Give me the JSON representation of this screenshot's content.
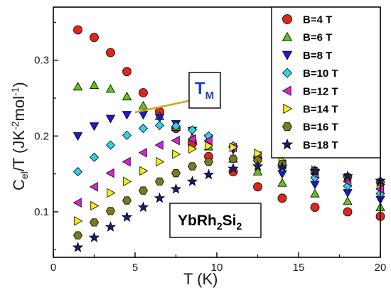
{
  "chart_data": {
    "type": "scatter",
    "xlabel": "T (K)",
    "ylabel_main": "C",
    "ylabel_sub": "el",
    "ylabel_mid": "/T (JK",
    "ylabel_sup1": "-2",
    "ylabel_mol": "mol",
    "ylabel_sup2": "-1",
    "ylabel_end": ")",
    "xlim": [
      0,
      20
    ],
    "ylim": [
      0.04,
      0.37
    ],
    "x_ticks": [
      0,
      5,
      10,
      15,
      20
    ],
    "y_ticks": [
      0.1,
      0.2,
      0.3
    ],
    "x_tick_labels": [
      "0",
      "5",
      "10",
      "15",
      "20"
    ],
    "y_tick_labels": [
      "0.1",
      "0.2",
      "0.3"
    ],
    "legend_position": "top-right",
    "annotation_TM": {
      "main": "T",
      "sub": "M",
      "color": "#1f3fbf",
      "arrow_color": "#d9a21a"
    },
    "annotation_compound": {
      "p1": "YbRh",
      "s1": "2",
      "p2": "Si",
      "s2": "2"
    },
    "series": [
      {
        "name": "B=4 T",
        "marker": "circle",
        "color": "#e0251b",
        "points": [
          [
            1.5,
            0.34
          ],
          [
            2.5,
            0.33
          ],
          [
            3.5,
            0.31
          ],
          [
            4.5,
            0.285
          ],
          [
            5.5,
            0.257
          ],
          [
            6.5,
            0.232
          ],
          [
            7.5,
            0.21
          ],
          [
            8.5,
            0.19
          ],
          [
            9.5,
            0.173
          ],
          [
            11,
            0.153
          ],
          [
            12.5,
            0.133
          ],
          [
            14,
            0.118
          ],
          [
            16,
            0.106
          ],
          [
            18,
            0.1
          ],
          [
            20,
            0.094
          ]
        ]
      },
      {
        "name": "B=6 T",
        "marker": "triangle-up",
        "color": "#5fc418",
        "points": [
          [
            1.5,
            0.265
          ],
          [
            2.5,
            0.267
          ],
          [
            3.5,
            0.262
          ],
          [
            4.5,
            0.252
          ],
          [
            5.5,
            0.24
          ],
          [
            6.5,
            0.226
          ],
          [
            7.5,
            0.212
          ],
          [
            8.5,
            0.198
          ],
          [
            9.5,
            0.186
          ],
          [
            11,
            0.17
          ],
          [
            12.5,
            0.153
          ],
          [
            14,
            0.138
          ],
          [
            16,
            0.124
          ],
          [
            18,
            0.114
          ],
          [
            20,
            0.106
          ]
        ]
      },
      {
        "name": "B=8 T",
        "marker": "triangle-down",
        "color": "#1a1adc",
        "points": [
          [
            1.5,
            0.2
          ],
          [
            2.5,
            0.213
          ],
          [
            3.5,
            0.223
          ],
          [
            4.5,
            0.228
          ],
          [
            5.5,
            0.228
          ],
          [
            6.5,
            0.224
          ],
          [
            7.5,
            0.216
          ],
          [
            8.5,
            0.207
          ],
          [
            9.5,
            0.197
          ],
          [
            11,
            0.182
          ],
          [
            12.5,
            0.166
          ],
          [
            14,
            0.15
          ],
          [
            16,
            0.136
          ],
          [
            18,
            0.125
          ],
          [
            20,
            0.116
          ]
        ]
      },
      {
        "name": "B=10 T",
        "marker": "diamond",
        "color": "#31cfe8",
        "points": [
          [
            1.5,
            0.153
          ],
          [
            2.5,
            0.172
          ],
          [
            3.5,
            0.188
          ],
          [
            4.5,
            0.201
          ],
          [
            5.5,
            0.21
          ],
          [
            6.5,
            0.214
          ],
          [
            7.5,
            0.213
          ],
          [
            8.5,
            0.208
          ],
          [
            9.5,
            0.2
          ],
          [
            11,
            0.187
          ],
          [
            12.5,
            0.172
          ],
          [
            14,
            0.158
          ],
          [
            16,
            0.145
          ],
          [
            18,
            0.134
          ],
          [
            20,
            0.124
          ]
        ]
      },
      {
        "name": "B=12 T",
        "marker": "triangle-left",
        "color": "#d424d4",
        "points": [
          [
            1.5,
            0.112
          ],
          [
            2.5,
            0.133
          ],
          [
            3.5,
            0.151
          ],
          [
            4.5,
            0.166
          ],
          [
            5.5,
            0.178
          ],
          [
            6.5,
            0.188
          ],
          [
            7.5,
            0.194
          ],
          [
            8.5,
            0.196
          ],
          [
            9.5,
            0.194
          ],
          [
            11,
            0.185
          ],
          [
            12.5,
            0.174
          ],
          [
            14,
            0.163
          ],
          [
            16,
            0.15
          ],
          [
            18,
            0.14
          ],
          [
            20,
            0.13
          ]
        ]
      },
      {
        "name": "B=14 T",
        "marker": "triangle-right",
        "color": "#f2ee16",
        "points": [
          [
            1.5,
            0.088
          ],
          [
            2.5,
            0.108
          ],
          [
            3.5,
            0.125
          ],
          [
            4.5,
            0.14
          ],
          [
            5.5,
            0.154
          ],
          [
            6.5,
            0.166
          ],
          [
            7.5,
            0.176
          ],
          [
            8.5,
            0.183
          ],
          [
            9.5,
            0.187
          ],
          [
            11,
            0.185
          ],
          [
            12.5,
            0.177
          ],
          [
            14,
            0.167
          ],
          [
            16,
            0.155
          ],
          [
            18,
            0.145
          ],
          [
            20,
            0.136
          ]
        ]
      },
      {
        "name": "B=16 T",
        "marker": "hexagon",
        "color": "#7a7a1e",
        "points": [
          [
            1.5,
            0.069
          ],
          [
            2.5,
            0.086
          ],
          [
            3.5,
            0.101
          ],
          [
            4.5,
            0.115
          ],
          [
            5.5,
            0.128
          ],
          [
            6.5,
            0.14
          ],
          [
            7.5,
            0.151
          ],
          [
            8.5,
            0.16
          ],
          [
            9.5,
            0.166
          ],
          [
            11,
            0.17
          ],
          [
            12.5,
            0.168
          ],
          [
            14,
            0.163
          ],
          [
            16,
            0.154
          ],
          [
            18,
            0.146
          ],
          [
            20,
            0.139
          ]
        ]
      },
      {
        "name": "B=18 T",
        "marker": "star",
        "color": "#1b1b78",
        "points": [
          [
            1.5,
            0.053
          ],
          [
            2.5,
            0.066
          ],
          [
            3.5,
            0.08
          ],
          [
            4.5,
            0.093
          ],
          [
            5.5,
            0.106
          ],
          [
            6.5,
            0.118
          ],
          [
            7.5,
            0.13
          ],
          [
            8.5,
            0.14
          ],
          [
            9.5,
            0.149
          ],
          [
            11,
            0.157
          ],
          [
            12.5,
            0.16
          ],
          [
            14,
            0.159
          ],
          [
            16,
            0.154
          ],
          [
            18,
            0.147
          ],
          [
            20,
            0.141
          ]
        ]
      }
    ]
  }
}
